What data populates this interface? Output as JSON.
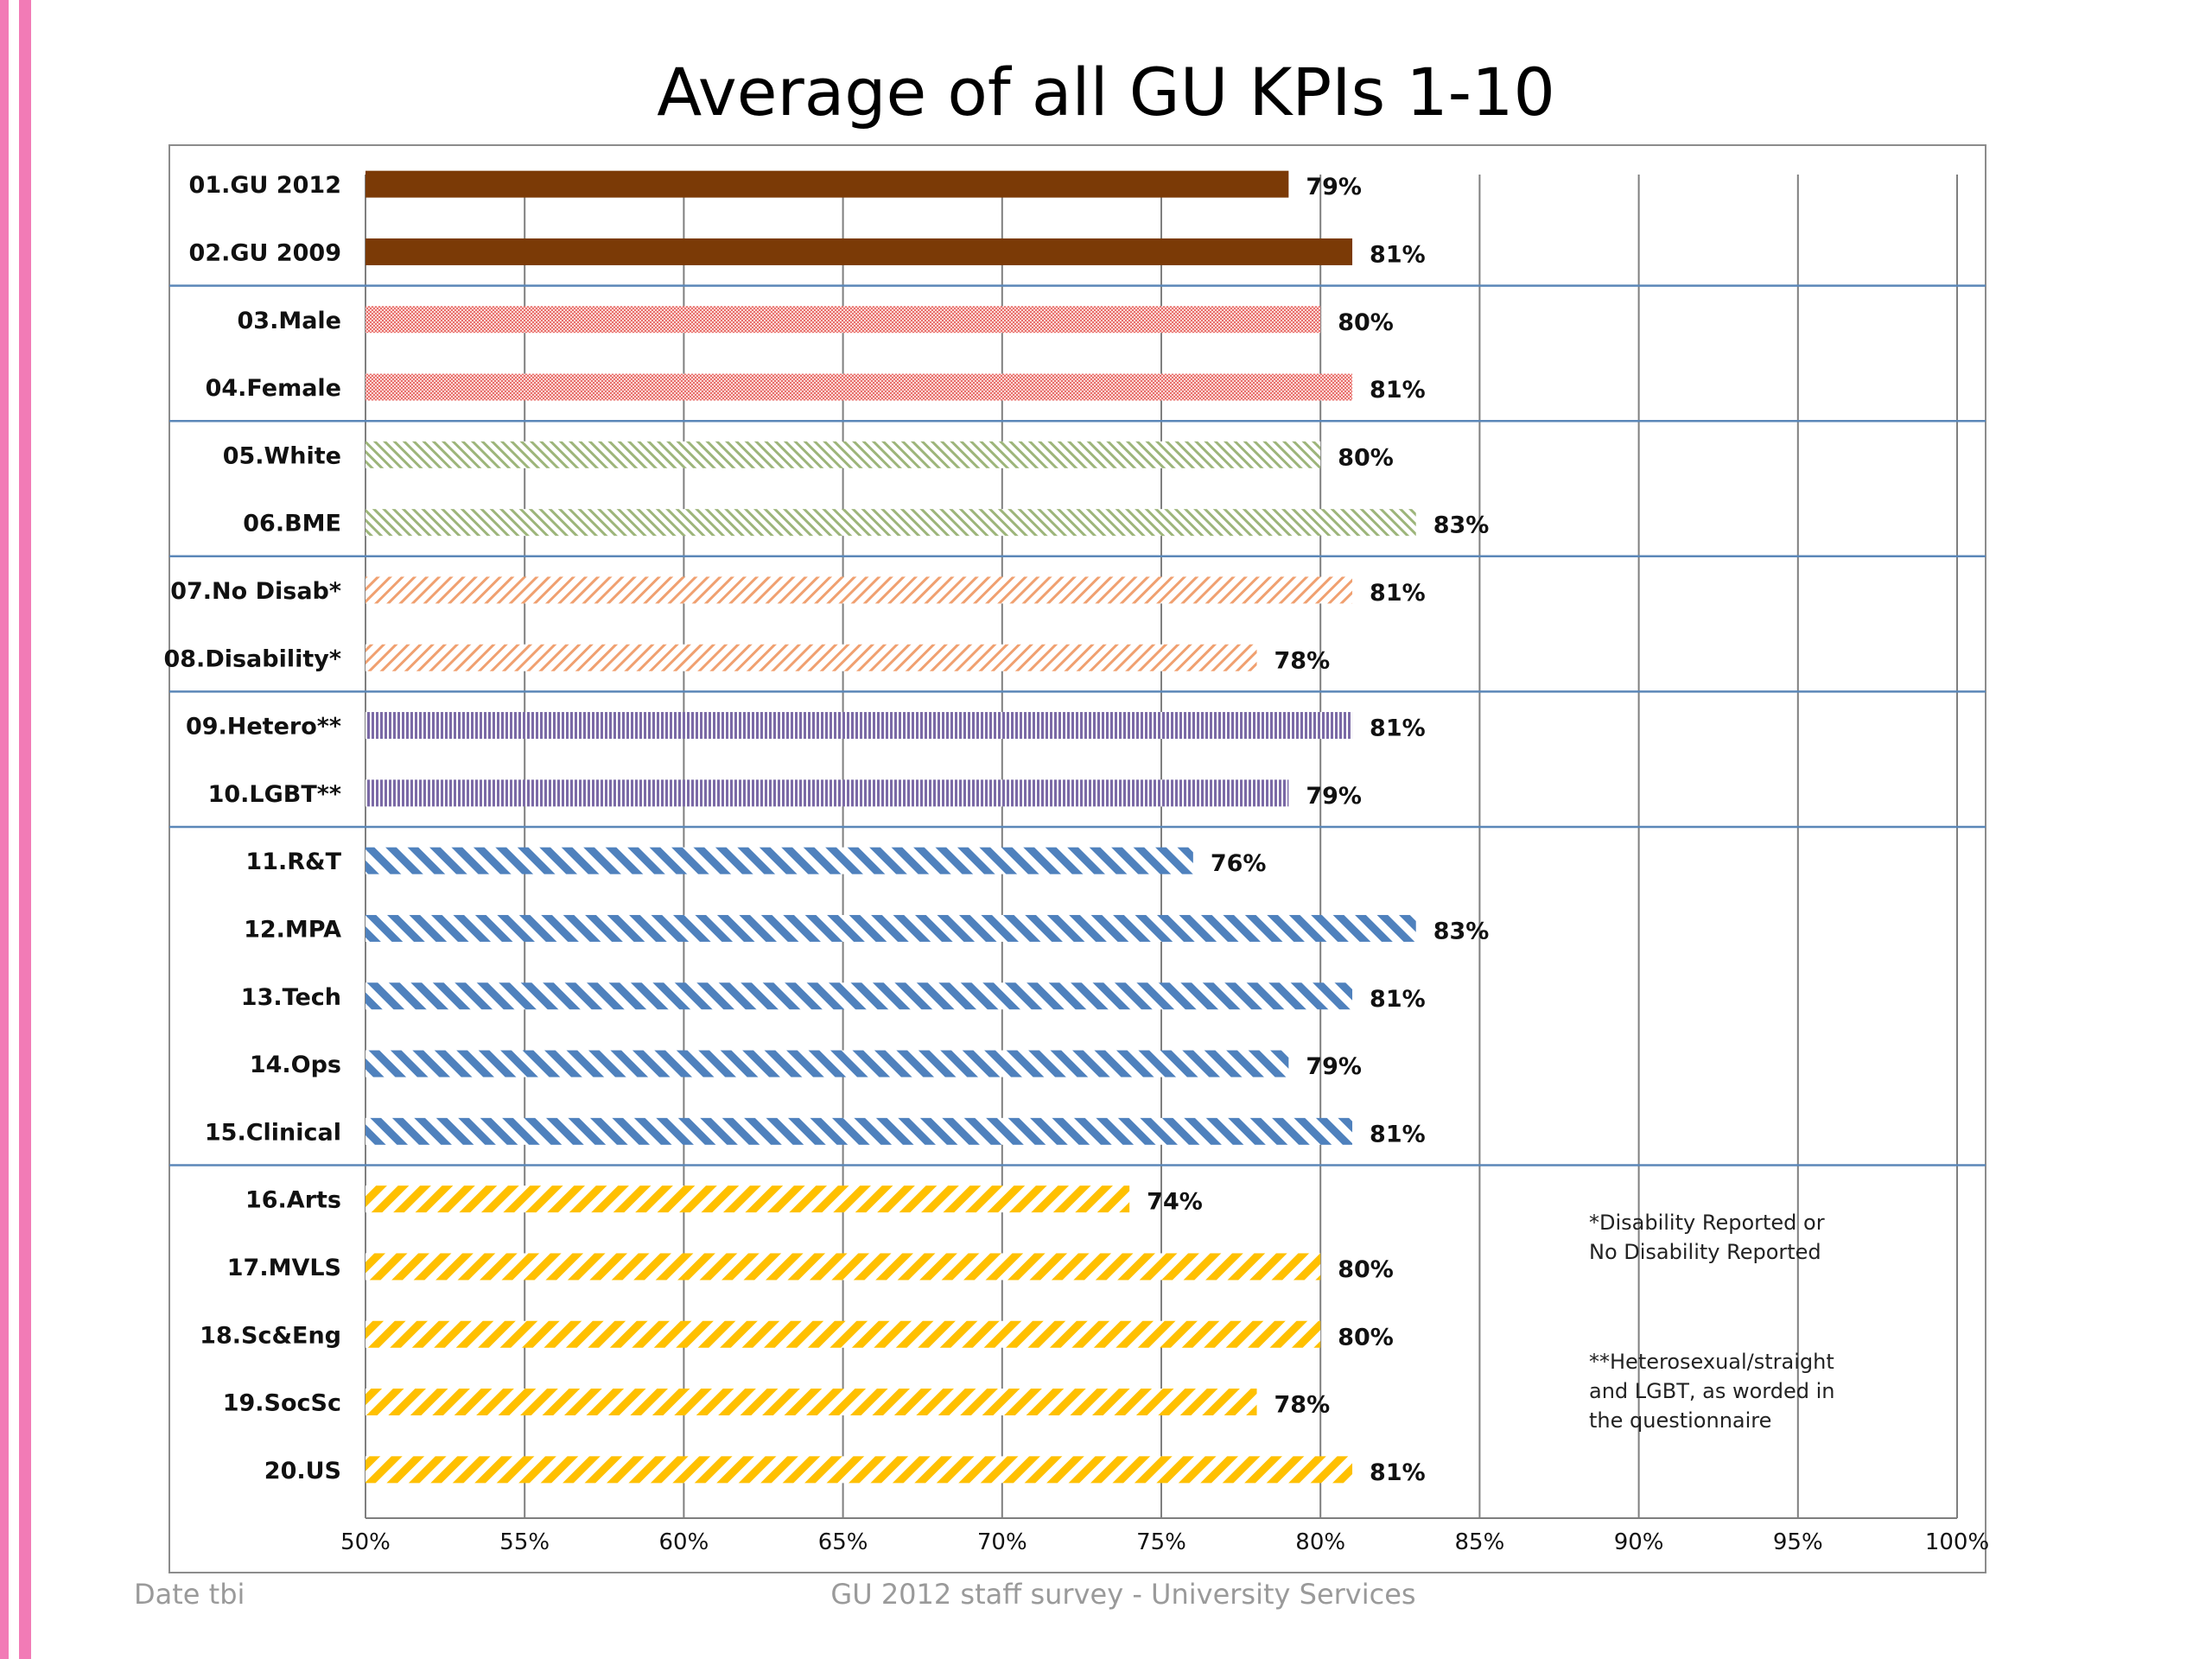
{
  "slide": {
    "footer_left": "Date tbi",
    "footer_center": "GU 2012 staff survey -  University Services"
  },
  "colors": {
    "accent": "#f27bb6",
    "separator": "#5b87b8",
    "grid": "#7f7f7f"
  },
  "chart_data": {
    "type": "bar",
    "orientation": "horizontal",
    "title": "Average of all GU KPIs 1-10",
    "xlim": [
      0.5,
      1.0
    ],
    "x_ticks": [
      "50%",
      "55%",
      "60%",
      "65%",
      "70%",
      "75%",
      "80%",
      "85%",
      "90%",
      "95%",
      "100%"
    ],
    "grid": "vertical",
    "categories": [
      "01.GU 2012",
      "02.GU 2009",
      "03.Male",
      "04.Female",
      "05.White",
      "06.BME",
      "07.No Disab*",
      "08.Disability*",
      "09.Hetero**",
      "10.LGBT**",
      "11.R&T",
      "12.MPA",
      "13.Tech",
      "14.Ops",
      "15.Clinical",
      "16.Arts",
      "17.MVLS",
      "18.Sc&Eng",
      "19.SocSc",
      "20.US"
    ],
    "values": [
      0.79,
      0.81,
      0.8,
      0.81,
      0.8,
      0.83,
      0.81,
      0.78,
      0.81,
      0.79,
      0.76,
      0.83,
      0.81,
      0.79,
      0.81,
      0.74,
      0.8,
      0.8,
      0.78,
      0.81
    ],
    "data_labels": [
      "79%",
      "81%",
      "80%",
      "81%",
      "80%",
      "83%",
      "81%",
      "78%",
      "81%",
      "79%",
      "76%",
      "83%",
      "81%",
      "79%",
      "81%",
      "74%",
      "80%",
      "80%",
      "78%",
      "81%"
    ],
    "groups": [
      {
        "pattern": "solid",
        "color": "#7b3a06",
        "size": 2
      },
      {
        "pattern": "dots",
        "color": "#e8706c",
        "size": 2
      },
      {
        "pattern": "thin-diagonal",
        "color": "#9db57a",
        "size": 2
      },
      {
        "pattern": "forward-diagonal",
        "color": "#f0a070",
        "size": 2
      },
      {
        "pattern": "vertical-lines",
        "color": "#7b6aa6",
        "size": 2
      },
      {
        "pattern": "wide-back-diagonal",
        "color": "#4f81bd",
        "size": 5
      },
      {
        "pattern": "wide-forward-diagonal",
        "color": "#ffc000",
        "size": 5
      }
    ],
    "notes": [
      [
        "*Disability Reported or",
        "No Disability Reported"
      ],
      [
        "**Heterosexual/straight",
        "and LGBT, as worded in",
        "the questionnaire"
      ]
    ]
  }
}
